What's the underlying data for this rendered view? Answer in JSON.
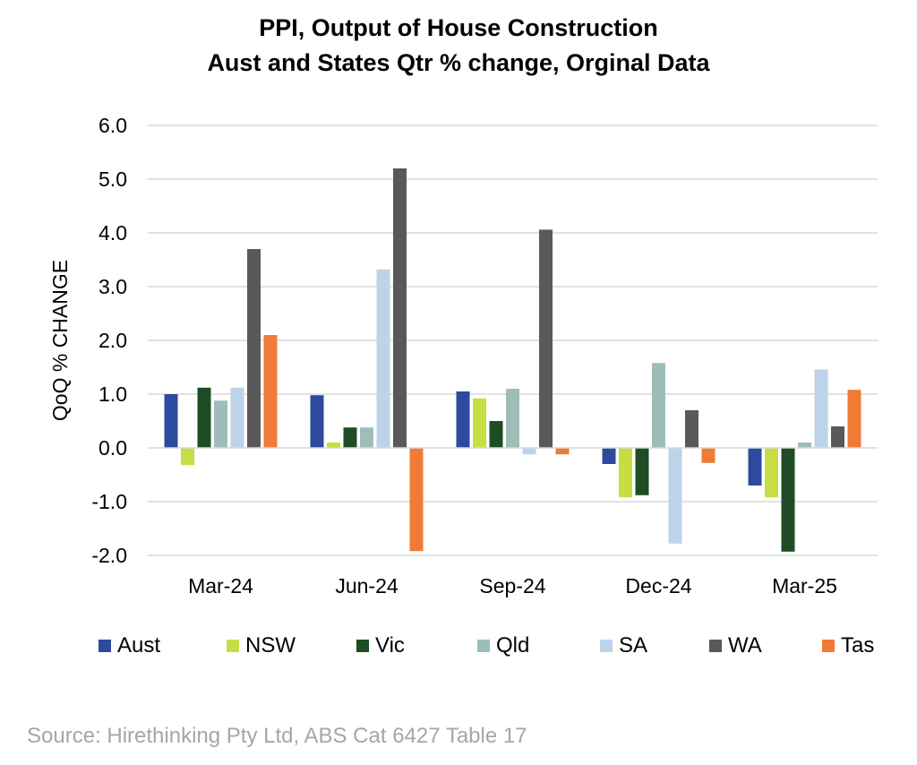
{
  "chart_data": {
    "type": "bar",
    "title": "PPI, Output of House Construction",
    "subtitle": "Aust and States Qtr % change, Orginal Data",
    "xlabel": "",
    "ylabel": "QoQ % CHANGE",
    "ylim": [
      -2.0,
      6.0
    ],
    "yticks": [
      "6.0",
      "5.0",
      "4.0",
      "3.0",
      "2.0",
      "1.0",
      "0.0",
      "-1.0",
      "-2.0"
    ],
    "ytick_values": [
      6,
      5,
      4,
      3,
      2,
      1,
      0,
      -1,
      -2
    ],
    "grid": true,
    "legend_position": "bottom",
    "categories": [
      "Mar-24",
      "Jun-24",
      "Sep-24",
      "Dec-24",
      "Mar-25"
    ],
    "series": [
      {
        "name": "Aust",
        "color": "#2e4a9e",
        "values": [
          1.0,
          0.98,
          1.05,
          -0.3,
          -0.7
        ]
      },
      {
        "name": "NSW",
        "color": "#c8dc44",
        "values": [
          -0.32,
          0.1,
          0.92,
          -0.92,
          -0.92
        ]
      },
      {
        "name": "Vic",
        "color": "#1e4d25",
        "values": [
          1.12,
          0.38,
          0.5,
          -0.88,
          -1.93
        ]
      },
      {
        "name": "Qld",
        "color": "#9fbdb8",
        "values": [
          0.88,
          0.38,
          1.1,
          1.58,
          0.1
        ]
      },
      {
        "name": "SA",
        "color": "#bcd3ea",
        "values": [
          1.12,
          3.32,
          -0.12,
          -1.78,
          1.46
        ]
      },
      {
        "name": "WA",
        "color": "#595959",
        "values": [
          3.7,
          5.2,
          4.06,
          0.7,
          0.4
        ]
      },
      {
        "name": "Tas",
        "color": "#ef7b36",
        "values": [
          2.1,
          -1.92,
          -0.12,
          -0.28,
          1.08
        ]
      }
    ]
  },
  "source": "Source: Hirethinking Pty Ltd, ABS Cat 6427 Table 17"
}
